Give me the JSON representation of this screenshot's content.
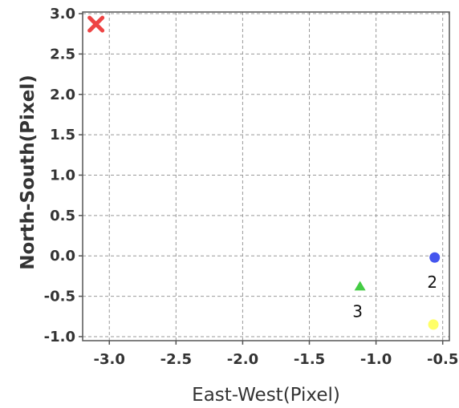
{
  "chart_data": {
    "type": "scatter",
    "xlabel": "East-West(Pixel)",
    "ylabel": "North-South(Pixel)",
    "xlim": [
      -3.2,
      -0.45
    ],
    "ylim": [
      -1.05,
      3.02
    ],
    "xticks": [
      -3.0,
      -2.5,
      -2.0,
      -1.5,
      -1.0,
      -0.5
    ],
    "xtick_labels": [
      "-3.0",
      "-2.5",
      "-2.0",
      "-1.5",
      "-1.0",
      "-0.5"
    ],
    "yticks": [
      3.0,
      2.5,
      2.0,
      1.5,
      1.0,
      0.5,
      0.0,
      -0.5,
      -1.0
    ],
    "ytick_labels": [
      "3.0",
      "2.5",
      "2.0",
      "1.5",
      "1.0",
      "0.5",
      "0.0",
      "-0.5",
      "-1.0"
    ],
    "grid": true,
    "points": [
      {
        "x": -3.1,
        "y": 2.87,
        "marker": "x",
        "color": "#ee4444",
        "label": ""
      },
      {
        "x": -0.56,
        "y": -0.02,
        "marker": "circle",
        "color": "#4455ee",
        "label": "2"
      },
      {
        "x": -1.12,
        "y": -0.38,
        "marker": "triangle",
        "color": "#44cc44",
        "label": "3"
      },
      {
        "x": -0.57,
        "y": -0.85,
        "marker": "circle",
        "color": "#ffff66",
        "label": ""
      }
    ]
  }
}
